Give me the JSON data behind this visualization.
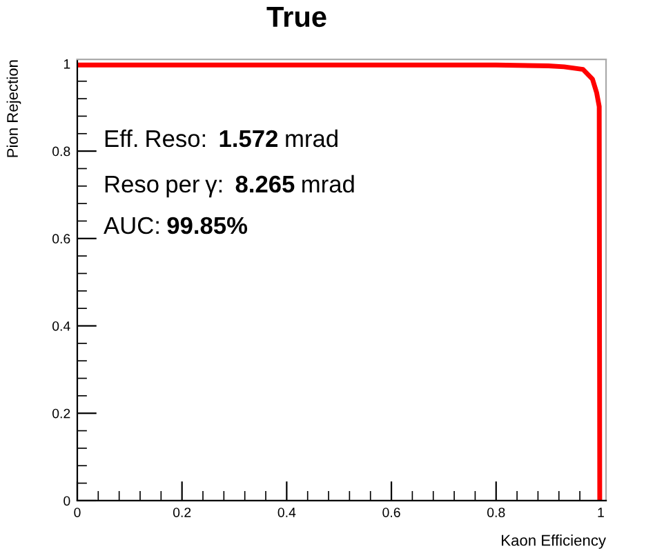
{
  "chart_data": {
    "type": "line",
    "title": "True",
    "xlabel": "Kaon Efficiency",
    "ylabel": "Pion Rejection",
    "x": [
      0,
      0.8,
      0.9,
      0.93,
      0.966,
      0.984,
      0.992,
      0.997,
      0.998
    ],
    "series": [
      {
        "color": "#ff0000",
        "values": [
          0.997,
          0.997,
          0.995,
          0.993,
          0.987,
          0.965,
          0.934,
          0.902,
          0
        ]
      }
    ],
    "xlim": [
      0,
      1.01
    ],
    "ylim": [
      0,
      1.01
    ],
    "xticks": [
      0,
      0.2,
      0.4,
      0.6,
      0.8,
      1
    ],
    "yticks": [
      0,
      0.2,
      0.4,
      0.6,
      0.8,
      1
    ],
    "annotations": [
      "Eff. Reso:  1.572 mrad",
      "Reso per γ:  8.265 mrad",
      "AUC: 99.85%"
    ],
    "grid": false,
    "marker": "none",
    "line_style": "solid"
  }
}
